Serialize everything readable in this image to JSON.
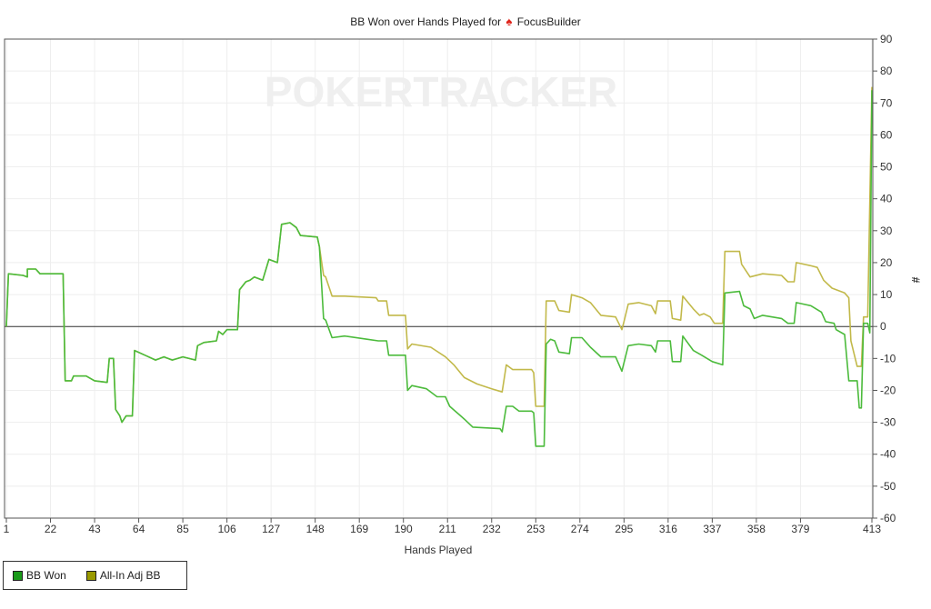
{
  "chart_data": {
    "type": "line",
    "title": "BB Won over Hands Played for",
    "player": "FocusBuilder",
    "watermark": "POKERTRACKER",
    "xlabel": "Hands Played",
    "ylabel": "#",
    "xlim": [
      1,
      413
    ],
    "ylim": [
      -60,
      90
    ],
    "x_ticks": [
      1,
      22,
      43,
      64,
      85,
      106,
      127,
      148,
      169,
      190,
      211,
      232,
      253,
      274,
      295,
      316,
      337,
      358,
      379,
      413
    ],
    "y_ticks": [
      90,
      80,
      70,
      60,
      50,
      40,
      30,
      20,
      10,
      0,
      -10,
      -20,
      -30,
      -40,
      -50,
      -60
    ],
    "grid": true,
    "legend_position": "bottom-left",
    "series": [
      {
        "name": "BB Won",
        "color": "#4cbb3c",
        "legend_color": "#1a9a1a",
        "points": [
          [
            1,
            0
          ],
          [
            2,
            16.5
          ],
          [
            9,
            16
          ],
          [
            11,
            15.5
          ],
          [
            11,
            18
          ],
          [
            15,
            18
          ],
          [
            17,
            16.5
          ],
          [
            28,
            16.5
          ],
          [
            29,
            -17
          ],
          [
            32,
            -17
          ],
          [
            33,
            -15.5
          ],
          [
            39,
            -15.5
          ],
          [
            43,
            -17
          ],
          [
            49,
            -17.5
          ],
          [
            50,
            -10
          ],
          [
            52,
            -10
          ],
          [
            53,
            -26
          ],
          [
            55,
            -28
          ],
          [
            56,
            -30
          ],
          [
            58,
            -28
          ],
          [
            61,
            -28
          ],
          [
            62,
            -7.5
          ],
          [
            67,
            -9
          ],
          [
            72,
            -10.5
          ],
          [
            76,
            -9.5
          ],
          [
            80,
            -10.5
          ],
          [
            85,
            -9.5
          ],
          [
            91,
            -10.5
          ],
          [
            92,
            -6
          ],
          [
            95,
            -5
          ],
          [
            101,
            -4.5
          ],
          [
            102,
            -1.5
          ],
          [
            104,
            -2.5
          ],
          [
            106,
            -1
          ],
          [
            111,
            -1
          ],
          [
            112,
            11.5
          ],
          [
            115,
            14
          ],
          [
            117,
            14.5
          ],
          [
            119,
            15.5
          ],
          [
            123,
            14.5
          ],
          [
            126,
            21
          ],
          [
            130,
            20
          ],
          [
            132,
            32
          ],
          [
            136,
            32.5
          ],
          [
            139,
            31
          ],
          [
            141,
            28.5
          ],
          [
            149,
            28
          ],
          [
            150,
            25
          ],
          [
            152,
            2.5
          ],
          [
            153,
            2
          ],
          [
            156,
            -3.5
          ],
          [
            162,
            -3
          ],
          [
            173,
            -4
          ],
          [
            178,
            -4.5
          ],
          [
            182,
            -4.5
          ],
          [
            183,
            -9
          ],
          [
            191,
            -9
          ],
          [
            192,
            -20
          ],
          [
            194,
            -18.5
          ],
          [
            201,
            -19.5
          ],
          [
            206,
            -22
          ],
          [
            210,
            -22
          ],
          [
            212,
            -25
          ],
          [
            219,
            -29
          ],
          [
            223,
            -31.5
          ],
          [
            236,
            -32
          ],
          [
            237,
            -33
          ],
          [
            239,
            -25
          ],
          [
            242,
            -25
          ],
          [
            245,
            -26.5
          ],
          [
            251,
            -26.5
          ],
          [
            252,
            -27
          ],
          [
            253,
            -37.5
          ],
          [
            257,
            -37.5
          ],
          [
            258,
            -5.5
          ],
          [
            260,
            -4
          ],
          [
            262,
            -4.5
          ],
          [
            264,
            -8
          ],
          [
            269,
            -8.5
          ],
          [
            270,
            -3.5
          ],
          [
            275,
            -3.5
          ],
          [
            279,
            -6.5
          ],
          [
            284,
            -9.5
          ],
          [
            291,
            -9.5
          ],
          [
            294,
            -14
          ],
          [
            297,
            -6
          ],
          [
            302,
            -5.5
          ],
          [
            308,
            -6
          ],
          [
            310,
            -8
          ],
          [
            311,
            -4.5
          ],
          [
            317,
            -4.5
          ],
          [
            318,
            -11
          ],
          [
            322,
            -11
          ],
          [
            323,
            -3
          ],
          [
            328,
            -7.5
          ],
          [
            332,
            -9
          ],
          [
            337,
            -11
          ],
          [
            342,
            -12
          ],
          [
            343,
            10.5
          ],
          [
            350,
            11
          ],
          [
            352,
            6.5
          ],
          [
            355,
            5.5
          ],
          [
            357,
            2.5
          ],
          [
            361,
            3.5
          ],
          [
            370,
            2.5
          ],
          [
            373,
            1
          ],
          [
            376,
            1
          ],
          [
            377,
            7.5
          ],
          [
            384,
            6.5
          ],
          [
            389,
            4.5
          ],
          [
            391,
            1.5
          ],
          [
            395,
            1
          ],
          [
            396,
            -1
          ],
          [
            400,
            -2.5
          ],
          [
            402,
            -17
          ],
          [
            406,
            -17
          ],
          [
            407,
            -25.5
          ],
          [
            408,
            -25.5
          ],
          [
            409,
            1
          ],
          [
            411,
            1
          ],
          [
            412,
            -2
          ],
          [
            413,
            74
          ]
        ]
      },
      {
        "name": "All-In Adj BB",
        "color": "#c2b94a",
        "legend_color": "#9a9a00",
        "points": [
          [
            1,
            0
          ],
          [
            2,
            16.5
          ],
          [
            9,
            16
          ],
          [
            11,
            15.5
          ],
          [
            11,
            18
          ],
          [
            15,
            18
          ],
          [
            17,
            16.5
          ],
          [
            28,
            16.5
          ],
          [
            29,
            -17
          ],
          [
            32,
            -17
          ],
          [
            33,
            -15.5
          ],
          [
            39,
            -15.5
          ],
          [
            43,
            -17
          ],
          [
            49,
            -17.5
          ],
          [
            50,
            -10
          ],
          [
            52,
            -10
          ],
          [
            53,
            -26
          ],
          [
            55,
            -28
          ],
          [
            56,
            -30
          ],
          [
            58,
            -28
          ],
          [
            61,
            -28
          ],
          [
            62,
            -7.5
          ],
          [
            67,
            -9
          ],
          [
            72,
            -10.5
          ],
          [
            76,
            -9.5
          ],
          [
            80,
            -10.5
          ],
          [
            85,
            -9.5
          ],
          [
            91,
            -10.5
          ],
          [
            92,
            -6
          ],
          [
            95,
            -5
          ],
          [
            101,
            -4.5
          ],
          [
            102,
            -1.5
          ],
          [
            104,
            -2.5
          ],
          [
            106,
            -1
          ],
          [
            111,
            -1
          ],
          [
            112,
            11.5
          ],
          [
            115,
            14
          ],
          [
            117,
            14.5
          ],
          [
            119,
            15.5
          ],
          [
            123,
            14.5
          ],
          [
            126,
            21
          ],
          [
            130,
            20
          ],
          [
            132,
            32
          ],
          [
            136,
            32.5
          ],
          [
            139,
            31
          ],
          [
            141,
            28.5
          ],
          [
            149,
            28
          ],
          [
            150,
            25
          ],
          [
            152,
            16
          ],
          [
            153,
            15.5
          ],
          [
            156,
            9.5
          ],
          [
            162,
            9.5
          ],
          [
            177,
            9
          ],
          [
            178,
            8
          ],
          [
            182,
            8
          ],
          [
            183,
            3.5
          ],
          [
            191,
            3.5
          ],
          [
            192,
            -7
          ],
          [
            194,
            -5.5
          ],
          [
            203,
            -6.5
          ],
          [
            210,
            -9.5
          ],
          [
            214,
            -12
          ],
          [
            219,
            -16
          ],
          [
            225,
            -18
          ],
          [
            232,
            -19.5
          ],
          [
            237,
            -20.5
          ],
          [
            239,
            -12
          ],
          [
            242,
            -13.5
          ],
          [
            251,
            -13.5
          ],
          [
            252,
            -14.5
          ],
          [
            253,
            -25
          ],
          [
            257,
            -25
          ],
          [
            258,
            8
          ],
          [
            262,
            8
          ],
          [
            264,
            5
          ],
          [
            269,
            4.5
          ],
          [
            270,
            10
          ],
          [
            275,
            9
          ],
          [
            279,
            7.5
          ],
          [
            284,
            3.5
          ],
          [
            291,
            3
          ],
          [
            294,
            -1
          ],
          [
            295,
            1.5
          ],
          [
            297,
            7
          ],
          [
            302,
            7.5
          ],
          [
            308,
            6.5
          ],
          [
            310,
            4
          ],
          [
            311,
            8
          ],
          [
            317,
            8
          ],
          [
            318,
            2.5
          ],
          [
            322,
            2
          ],
          [
            323,
            9.5
          ],
          [
            328,
            5.5
          ],
          [
            331,
            3.5
          ],
          [
            333,
            4
          ],
          [
            336,
            3
          ],
          [
            338,
            1
          ],
          [
            342,
            1
          ],
          [
            343,
            23.5
          ],
          [
            350,
            23.5
          ],
          [
            351,
            19.5
          ],
          [
            355,
            15.5
          ],
          [
            361,
            16.5
          ],
          [
            370,
            16
          ],
          [
            373,
            14
          ],
          [
            376,
            14
          ],
          [
            377,
            20
          ],
          [
            384,
            19
          ],
          [
            387,
            18.5
          ],
          [
            390,
            14.5
          ],
          [
            394,
            12
          ],
          [
            400,
            10.5
          ],
          [
            402,
            9
          ],
          [
            403,
            -4.5
          ],
          [
            406,
            -12.5
          ],
          [
            408,
            -12.5
          ],
          [
            409,
            3
          ],
          [
            411,
            3
          ],
          [
            413,
            75
          ]
        ]
      }
    ]
  }
}
